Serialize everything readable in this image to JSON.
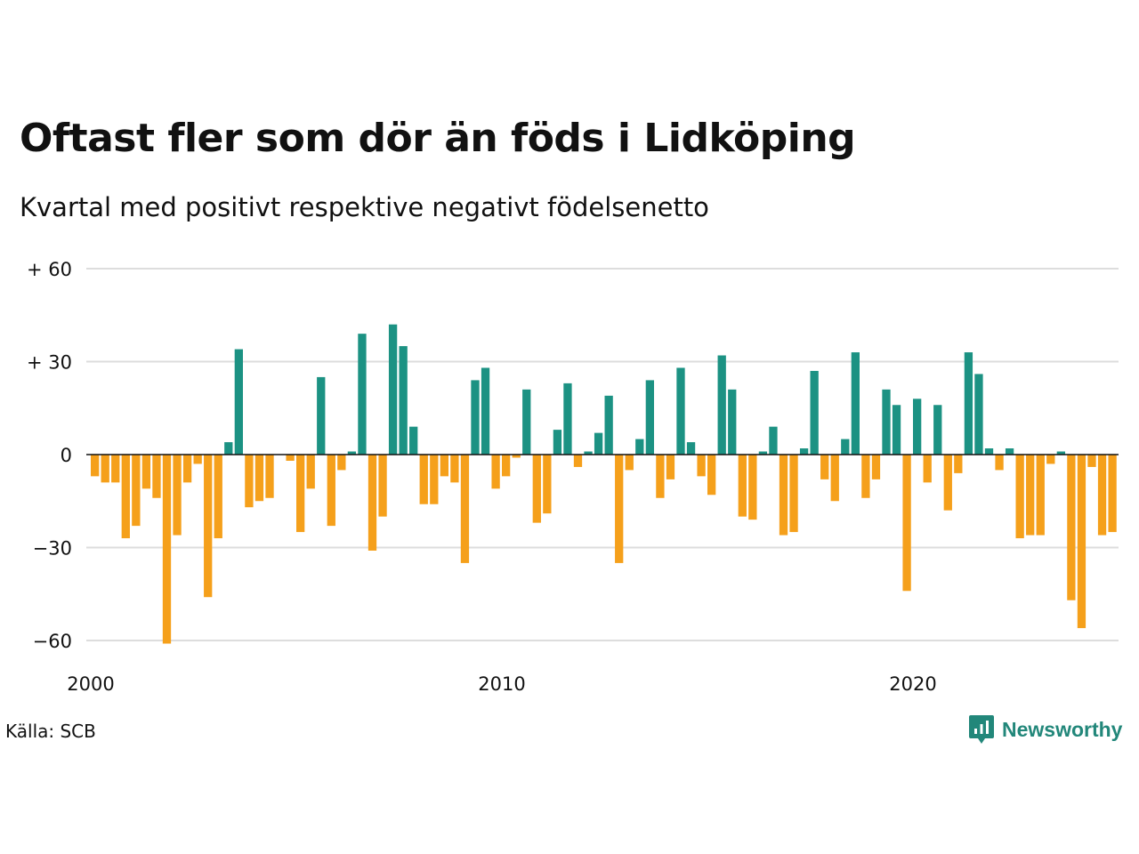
{
  "header": {
    "title": "Oftast fler som dör än föds i Lidköping",
    "subtitle": "Kvartal med positivt respektive negativt födelsenetto"
  },
  "footer": {
    "source": "Källa: SCB",
    "brand": "Newsworthy",
    "brand_icon": "newsworthy-logo-icon"
  },
  "colors": {
    "positive": "#1c9283",
    "negative": "#f5a01b",
    "grid": "#dddddd",
    "brand": "#22877a"
  },
  "chart_data": {
    "type": "bar",
    "x_start": "2000 Q1",
    "x_ticks": [
      {
        "label": "2000",
        "index": 0
      },
      {
        "label": "2010",
        "index": 40
      },
      {
        "label": "2020",
        "index": 80
      }
    ],
    "y_ticks": [
      {
        "label": "+ 60",
        "value": 60
      },
      {
        "label": "+ 30",
        "value": 30
      },
      {
        "label": "0",
        "value": 0
      },
      {
        "label": "−30",
        "value": -30
      },
      {
        "label": "−60",
        "value": -60
      }
    ],
    "ylim": [
      -60,
      60
    ],
    "grid": true,
    "values": [
      -7,
      -9,
      -9,
      -27,
      -23,
      -11,
      -14,
      -61,
      -26,
      -9,
      -3,
      -46,
      -27,
      4,
      34,
      -17,
      -15,
      -14,
      0,
      -2,
      -25,
      -11,
      25,
      -23,
      -5,
      1,
      39,
      -31,
      -20,
      42,
      35,
      9,
      -16,
      -16,
      -7,
      -9,
      -35,
      24,
      28,
      -11,
      -7,
      -1,
      21,
      -22,
      -19,
      8,
      23,
      -4,
      1,
      7,
      19,
      -35,
      -5,
      5,
      24,
      -14,
      -8,
      28,
      4,
      -7,
      -13,
      32,
      21,
      -20,
      -21,
      1,
      9,
      -26,
      -25,
      2,
      27,
      -8,
      -15,
      5,
      33,
      -14,
      -8,
      21,
      16,
      -44,
      18,
      -9,
      16,
      -18,
      -6,
      33,
      26,
      2,
      -5,
      2,
      -27,
      -26,
      -26,
      -3,
      1,
      -47,
      -56,
      -4,
      -26,
      -25
    ]
  }
}
